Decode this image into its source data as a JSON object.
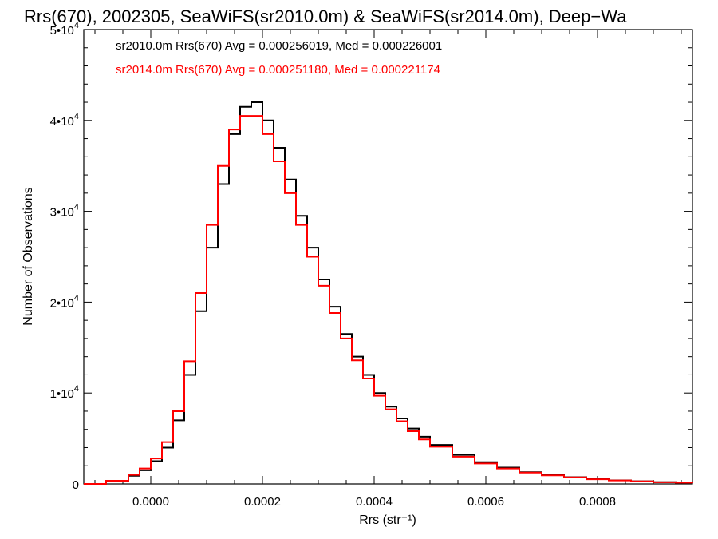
{
  "chart_data": {
    "type": "step",
    "title": "Rrs(670), 2002305, SeaWiFS(sr2010.0m) & SeaWiFS(sr2014.0m), Deep−Wa",
    "xlabel": "Rrs (str⁻¹)",
    "ylabel": "Number of Observations",
    "xlim": [
      -0.00012,
      0.00097
    ],
    "ylim": [
      0,
      50000
    ],
    "x_ticks": [
      0.0,
      0.0002,
      0.0004,
      0.0006,
      0.0008
    ],
    "x_tick_labels": [
      "0.0000",
      "0.0002",
      "0.0004",
      "0.0006",
      "0.0008"
    ],
    "y_ticks": [
      0,
      10000,
      20000,
      30000,
      40000,
      50000
    ],
    "y_tick_labels": [
      {
        "mantissa": "0",
        "exp": ""
      },
      {
        "mantissa": "1•10",
        "exp": "4"
      },
      {
        "mantissa": "2•10",
        "exp": "4"
      },
      {
        "mantissa": "3•10",
        "exp": "4"
      },
      {
        "mantissa": "4•10",
        "exp": "4"
      },
      {
        "mantissa": "5•10",
        "exp": "4"
      }
    ],
    "legend_position": "top-left",
    "series": [
      {
        "name": "sr2010.0m Rrs(670) Avg = 0.000256019, Med = 0.000226001",
        "color": "#000000",
        "x": [
          -0.00012,
          -8e-05,
          -4e-05,
          -2e-05,
          0.0,
          2e-05,
          4e-05,
          6e-05,
          8e-05,
          0.0001,
          0.00012,
          0.00014,
          0.00016,
          0.00018,
          0.0002,
          0.00022,
          0.00024,
          0.00026,
          0.00028,
          0.0003,
          0.00032,
          0.00034,
          0.00036,
          0.00038,
          0.0004,
          0.00042,
          0.00044,
          0.00046,
          0.00048,
          0.0005,
          0.00054,
          0.00058,
          0.00062,
          0.00066,
          0.0007,
          0.00074,
          0.00078,
          0.00082,
          0.00086,
          0.0009,
          0.00094,
          0.00097
        ],
        "y": [
          0,
          300,
          900,
          1500,
          2500,
          4000,
          7000,
          12000,
          19000,
          26000,
          33000,
          38500,
          41500,
          42000,
          40000,
          37000,
          33500,
          29500,
          26000,
          22500,
          19500,
          16500,
          14000,
          12000,
          10000,
          8500,
          7200,
          6100,
          5200,
          4300,
          3200,
          2400,
          1800,
          1300,
          1000,
          750,
          550,
          400,
          300,
          200,
          150,
          100
        ]
      },
      {
        "name": "sr2014.0m Rrs(670) Avg = 0.000251180, Med = 0.000221174",
        "color": "#ff0000",
        "x": [
          -0.00012,
          -8e-05,
          -4e-05,
          -2e-05,
          0.0,
          2e-05,
          4e-05,
          6e-05,
          8e-05,
          0.0001,
          0.00012,
          0.00014,
          0.00016,
          0.00018,
          0.0002,
          0.00022,
          0.00024,
          0.00026,
          0.00028,
          0.0003,
          0.00032,
          0.00034,
          0.00036,
          0.00038,
          0.0004,
          0.00042,
          0.00044,
          0.00046,
          0.00048,
          0.0005,
          0.00054,
          0.00058,
          0.00062,
          0.00066,
          0.0007,
          0.00074,
          0.00078,
          0.00082,
          0.00086,
          0.0009,
          0.00094,
          0.00097
        ],
        "y": [
          0,
          350,
          1000,
          1700,
          2800,
          4600,
          8000,
          13500,
          21000,
          28500,
          35000,
          39000,
          40500,
          40500,
          38500,
          35500,
          32000,
          28500,
          25000,
          21800,
          18800,
          16000,
          13600,
          11600,
          9700,
          8200,
          6900,
          5800,
          4900,
          4100,
          3000,
          2250,
          1700,
          1250,
          950,
          720,
          520,
          380,
          280,
          190,
          140,
          90
        ]
      }
    ]
  }
}
